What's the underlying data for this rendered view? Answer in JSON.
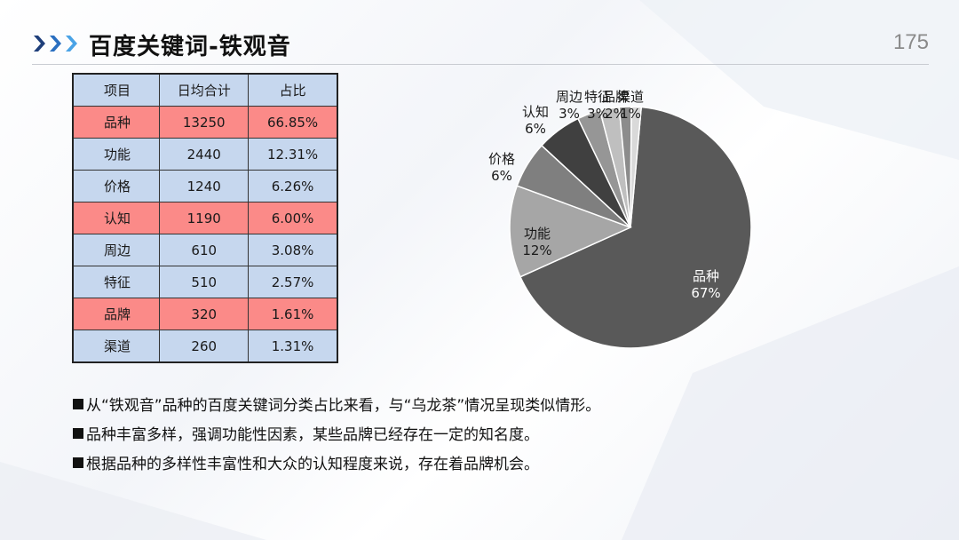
{
  "header": {
    "title": "百度关键词-铁观音",
    "page_number": "175"
  },
  "table": {
    "headers": [
      "项目",
      "日均合计",
      "占比"
    ],
    "rows": [
      {
        "cells": [
          "品种",
          "13250",
          "66.85%"
        ],
        "highlight": true
      },
      {
        "cells": [
          "功能",
          "2440",
          "12.31%"
        ],
        "highlight": false
      },
      {
        "cells": [
          "价格",
          "1240",
          "6.26%"
        ],
        "highlight": false
      },
      {
        "cells": [
          "认知",
          "1190",
          "6.00%"
        ],
        "highlight": true
      },
      {
        "cells": [
          "周边",
          "610",
          "3.08%"
        ],
        "highlight": false
      },
      {
        "cells": [
          "特征",
          "510",
          "2.57%"
        ],
        "highlight": false
      },
      {
        "cells": [
          "品牌",
          "320",
          "1.61%"
        ],
        "highlight": true
      },
      {
        "cells": [
          "渠道",
          "260",
          "1.31%"
        ],
        "highlight": false
      }
    ]
  },
  "colors": {
    "table_cell": "#c6d7ee",
    "table_highlight": "#fb8a88",
    "chevron_1": "#1f3f7a",
    "chevron_2": "#2a6fc0",
    "chevron_3": "#4aa3e6"
  },
  "chart_data": {
    "type": "pie",
    "slices": [
      {
        "name": "品种",
        "value": 13250,
        "pct_label": "67%",
        "color": "#595959"
      },
      {
        "name": "功能",
        "value": 2440,
        "pct_label": "12%",
        "color": "#a6a6a6"
      },
      {
        "name": "价格",
        "value": 1240,
        "pct_label": "6%",
        "color": "#7f7f7f"
      },
      {
        "name": "认知",
        "value": 1190,
        "pct_label": "6%",
        "color": "#404040"
      },
      {
        "name": "周边",
        "value": 610,
        "pct_label": "3%",
        "color": "#969696"
      },
      {
        "name": "特征",
        "value": 510,
        "pct_label": "3%",
        "color": "#bfbfbf"
      },
      {
        "name": "品牌",
        "value": 320,
        "pct_label": "2%",
        "color": "#8c8c8c"
      },
      {
        "name": "渠道",
        "value": 260,
        "pct_label": "1%",
        "color": "#d9d9d9"
      }
    ]
  },
  "bullets": [
    "从“铁观音”品种的百度关键词分类占比来看，与“乌龙茶”情况呈现类似情形。",
    "品种丰富多样，强调功能性因素，某些品牌已经存在一定的知名度。",
    "根据品种的多样性丰富性和大众的认知程度来说，存在着品牌机会。"
  ]
}
